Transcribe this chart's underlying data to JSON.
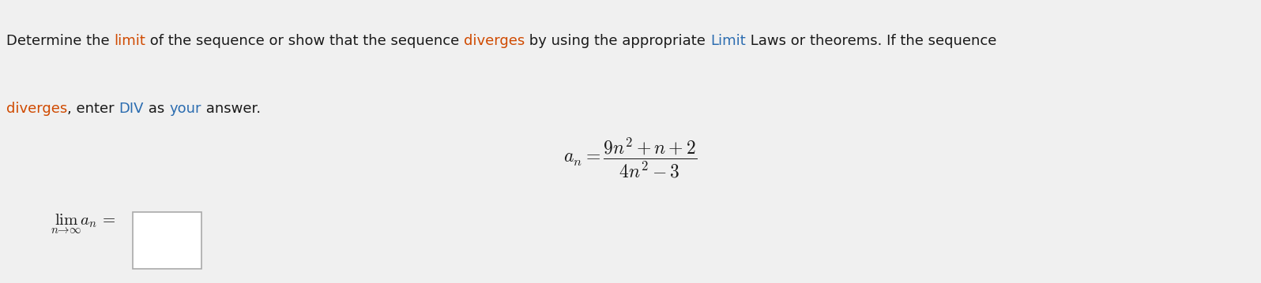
{
  "background_color": "#f0f0f0",
  "text_line1": "Determine the limit of the sequence or show that the sequence diverges by using the appropriate Limit Laws or theorems. If the sequence",
  "text_line2": "diverges, enter DIV as your answer.",
  "formula_an": "a_n = \\dfrac{9n^2 + n + 2}{4n^2 - 3}",
  "limit_label": "\\lim_{n \\to \\infty} a_n =",
  "font_size_body": 13,
  "font_size_formula": 17,
  "font_size_limit": 15,
  "text_color_black": "#1a1a1a",
  "text_color_orange": "#d04a00",
  "text_color_blue": "#2b6cb0",
  "box_color": "#ffffff",
  "box_edge_color": "#aaaaaa"
}
